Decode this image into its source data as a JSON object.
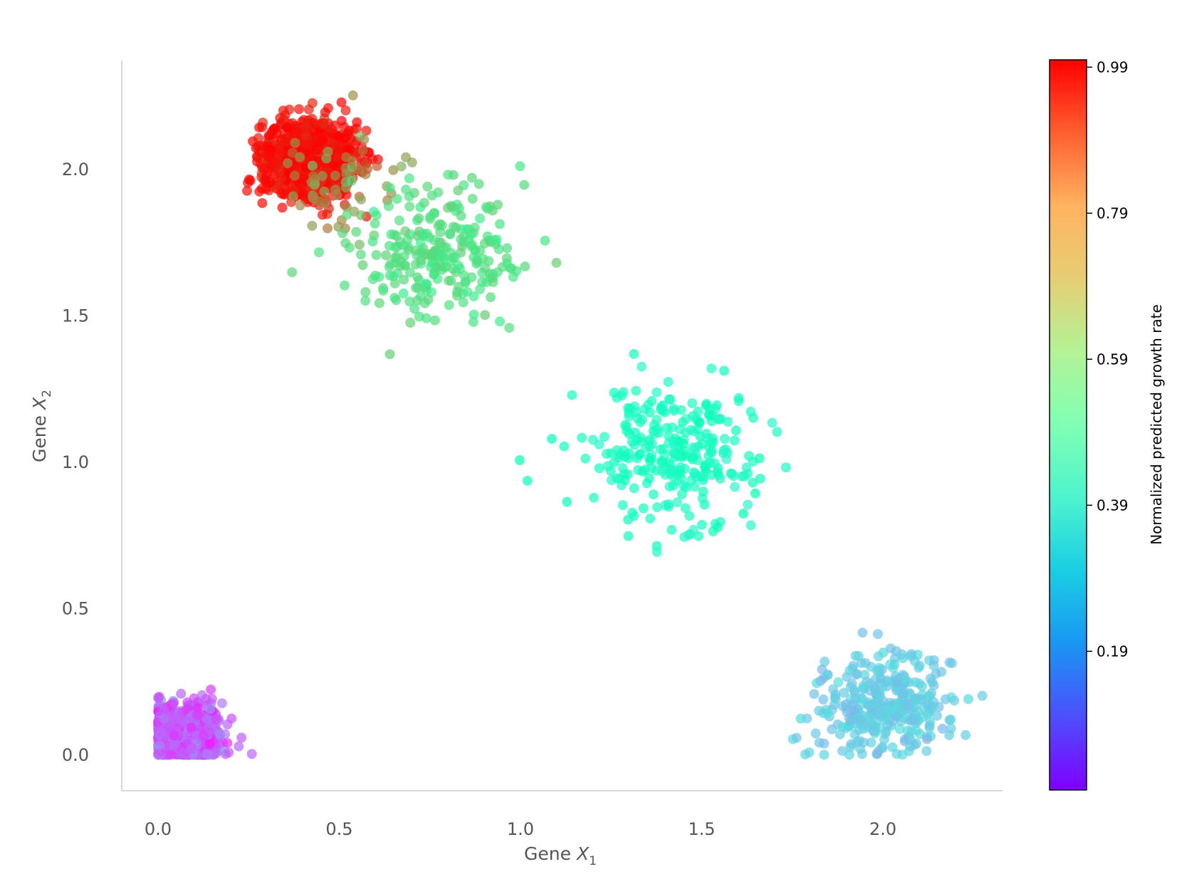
{
  "chart_data": {
    "type": "scatter",
    "xlabel_prefix": "Gene ",
    "xlabel_var": "X",
    "xlabel_sub": "1",
    "ylabel_prefix": "Gene ",
    "ylabel_var": "X",
    "ylabel_sub": "2",
    "xlim": [
      -0.1,
      2.35
    ],
    "ylim": [
      -0.12,
      2.35
    ],
    "xticks": [
      0.0,
      0.5,
      1.0,
      1.5,
      2.0
    ],
    "xtick_labels": [
      "0.0",
      "0.5",
      "1.0",
      "1.5",
      "2.0"
    ],
    "yticks": [
      0.0,
      0.5,
      1.0,
      1.5,
      2.0
    ],
    "ytick_labels": [
      "0.0",
      "0.5",
      "1.0",
      "1.5",
      "2.0"
    ],
    "colormap": "rainbow",
    "colorbar": {
      "label": "Normalized predicted growth rate",
      "range": [
        0.0,
        1.0
      ],
      "ticks": [
        0.19,
        0.39,
        0.59,
        0.79,
        0.99
      ],
      "tick_labels": [
        "0.19",
        "0.39",
        "0.59",
        "0.79",
        "0.99"
      ]
    },
    "clusters": [
      {
        "center": [
          0.07,
          0.07
        ],
        "spread": [
          0.055,
          0.055
        ],
        "count": 700,
        "growth": 0.12,
        "growth_spread": 0.04,
        "clip": [
          0.0,
          0.0
        ]
      },
      {
        "center": [
          0.42,
          2.04
        ],
        "spread": [
          0.065,
          0.065
        ],
        "count": 900,
        "growth": 0.98,
        "growth_spread": 0.02
      },
      {
        "center": [
          0.5,
          1.95
        ],
        "spread": [
          0.09,
          0.1
        ],
        "count": 60,
        "growth": 0.8,
        "growth_spread": 0.04
      },
      {
        "center": [
          0.78,
          1.7
        ],
        "spread": [
          0.12,
          0.11
        ],
        "count": 260,
        "growth": 0.66,
        "growth_spread": 0.02
      },
      {
        "center": [
          1.42,
          1.04
        ],
        "spread": [
          0.12,
          0.11
        ],
        "count": 280,
        "growth": 0.45,
        "growth_spread": 0.02
      },
      {
        "center": [
          2.0,
          0.17
        ],
        "spread": [
          0.09,
          0.09
        ],
        "count": 330,
        "growth": 0.3,
        "growth_spread": 0.02,
        "clip": [
          null,
          0.0
        ]
      }
    ]
  }
}
